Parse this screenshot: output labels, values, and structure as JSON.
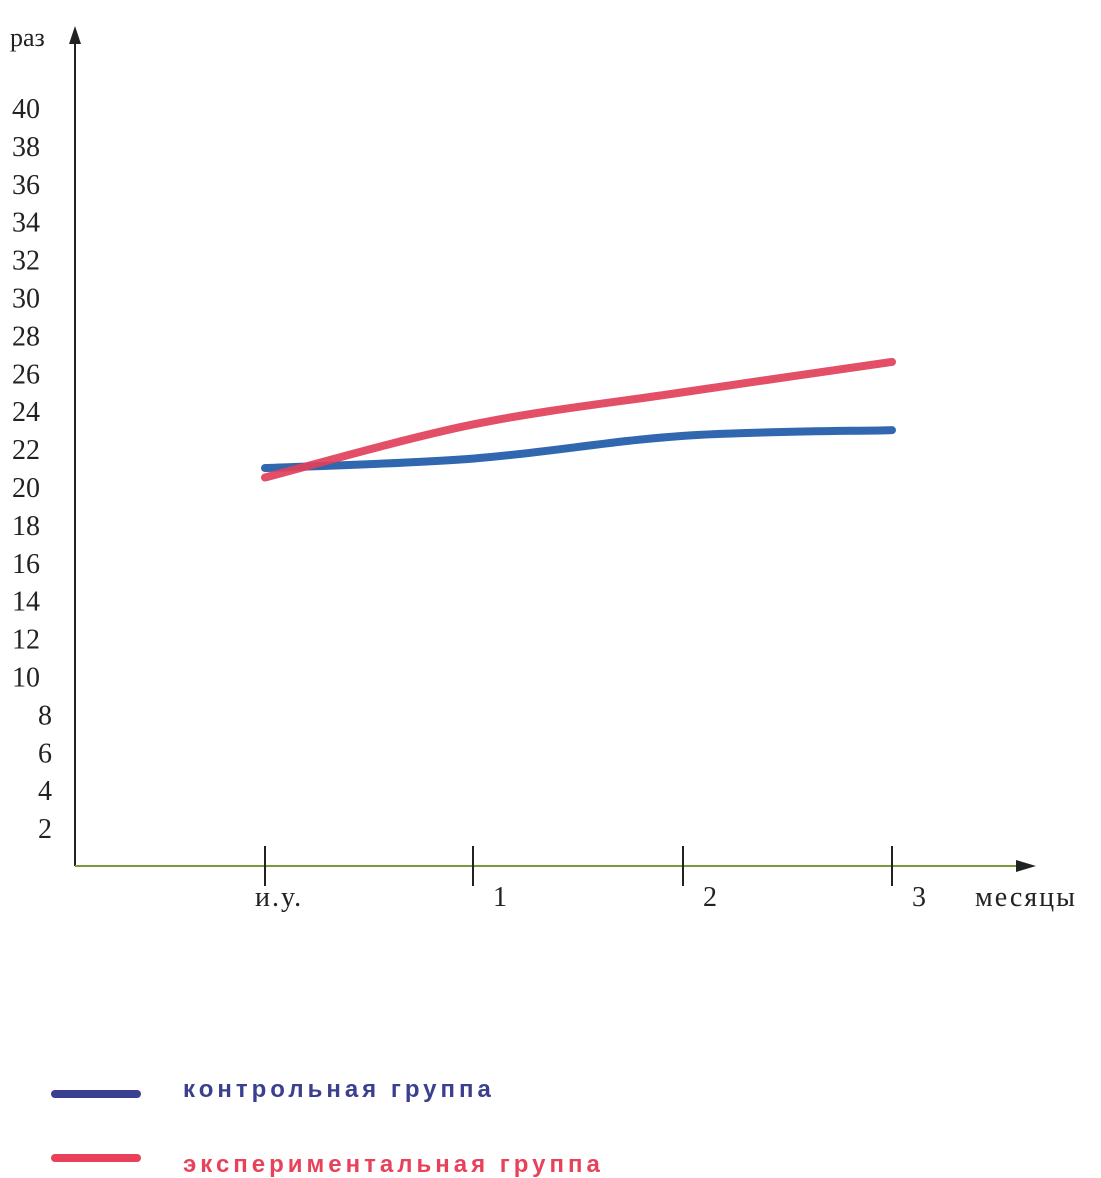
{
  "chart_data": {
    "type": "line",
    "ylabel": "раз",
    "xlabel": "месяцы",
    "categories": [
      "и.у.",
      "1",
      "2",
      "3"
    ],
    "yticks": [
      2,
      4,
      6,
      8,
      10,
      12,
      14,
      16,
      18,
      20,
      22,
      24,
      26,
      28,
      30,
      32,
      34,
      36,
      38,
      40
    ],
    "ylim": [
      0,
      40
    ],
    "grid": false,
    "legend_position": "bottom",
    "series": [
      {
        "name": "контрольная группа",
        "color": "#1f5aa8",
        "legend_color": "#3b3f8f",
        "values": [
          21.0,
          21.5,
          22.7,
          23.0
        ]
      },
      {
        "name": "экспериментальная группа",
        "color": "#e0405a",
        "legend_color": "#e8425a",
        "values": [
          20.5,
          23.3,
          25.0,
          26.6
        ]
      }
    ]
  }
}
